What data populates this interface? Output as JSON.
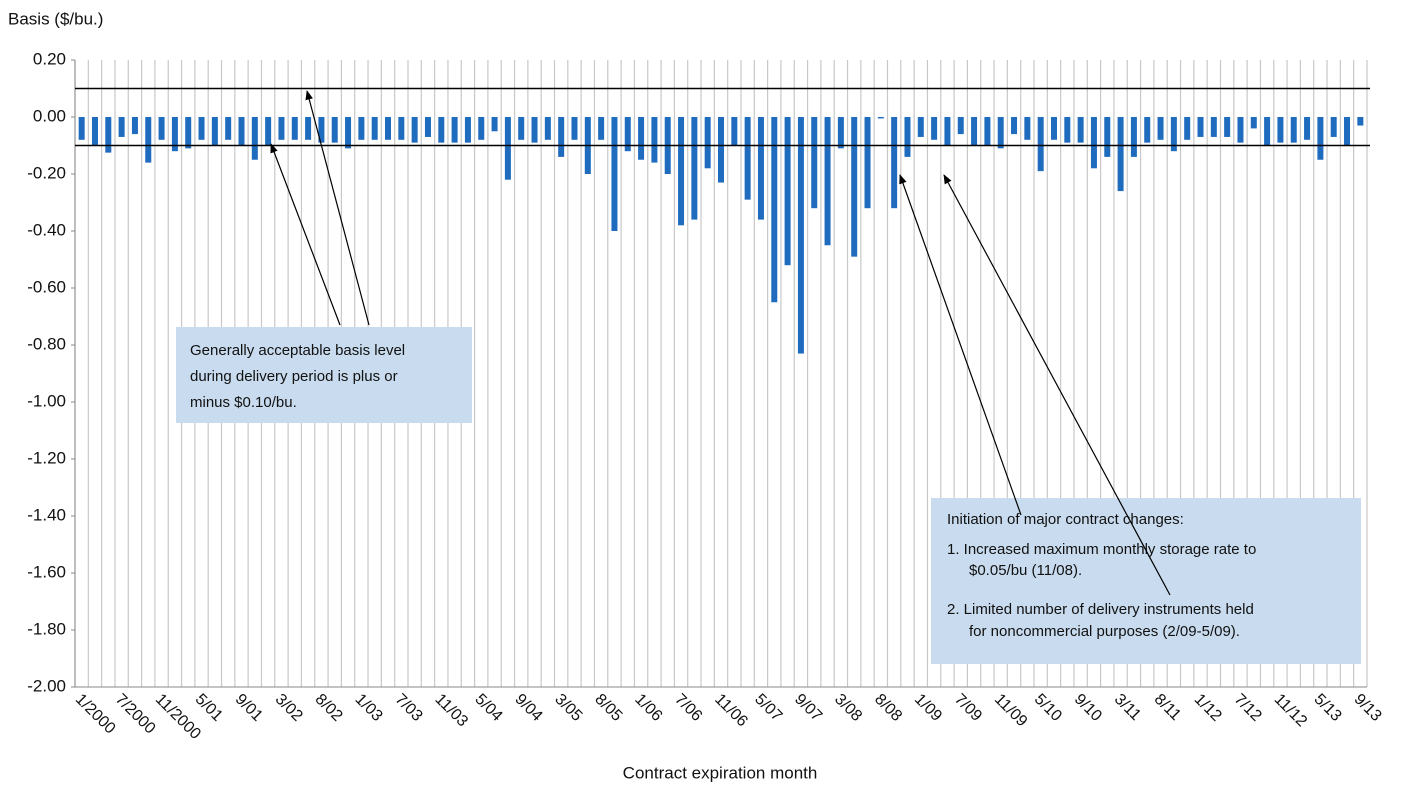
{
  "chart_data": {
    "type": "bar",
    "y_axis_label": "Basis ($/bu.)",
    "x_axis_label": "Contract expiration month",
    "color": "#1f6cbf",
    "ylim": [
      -2.0,
      0.2
    ],
    "yticks": [
      {
        "value": 0.2,
        "label": "0.20"
      },
      {
        "value": 0.0,
        "label": "0.00"
      },
      {
        "value": -0.2,
        "label": "-0.20"
      },
      {
        "value": -0.4,
        "label": "-0.40"
      },
      {
        "value": -0.6,
        "label": "-0.60"
      },
      {
        "value": -0.8,
        "label": "-0.80"
      },
      {
        "value": -1.0,
        "label": "-1.00"
      },
      {
        "value": -1.2,
        "label": "-1.20"
      },
      {
        "value": -1.4,
        "label": "-1.40"
      },
      {
        "value": -1.6,
        "label": "-1.60"
      },
      {
        "value": -1.8,
        "label": "-1.80"
      },
      {
        "value": -2.0,
        "label": "-2.00"
      }
    ],
    "reference_lines": [
      0.1,
      -0.1
    ],
    "categories": [
      "1/2000",
      null,
      null,
      "7/2000",
      null,
      null,
      "11/2000",
      null,
      null,
      "5/01",
      null,
      null,
      "9/01",
      null,
      null,
      "3/02",
      null,
      null,
      "8/02",
      null,
      null,
      "1/03",
      null,
      null,
      "7/03",
      null,
      null,
      "11/03",
      null,
      null,
      "5/04",
      null,
      null,
      "9/04",
      null,
      null,
      "3/05",
      null,
      null,
      "8/05",
      null,
      null,
      "1/06",
      null,
      null,
      "7/06",
      null,
      null,
      "11/06",
      null,
      null,
      "5/07",
      null,
      null,
      "9/07",
      null,
      null,
      "3/08",
      null,
      null,
      "8/08",
      null,
      null,
      "1/09",
      null,
      null,
      "7/09",
      null,
      null,
      "11/09",
      null,
      null,
      "5/10",
      null,
      null,
      "9/10",
      null,
      null,
      "3/11",
      null,
      null,
      "8/11",
      null,
      null,
      "1/12",
      null,
      null,
      "7/12",
      null,
      null,
      "11/12",
      null,
      null,
      "5/13",
      null,
      null,
      "9/13"
    ],
    "values": [
      -0.08,
      -0.1,
      -0.125,
      -0.07,
      -0.06,
      -0.16,
      -0.08,
      -0.12,
      -0.11,
      -0.08,
      -0.1,
      -0.08,
      -0.1,
      -0.15,
      -0.1,
      -0.08,
      -0.08,
      -0.08,
      -0.09,
      -0.09,
      -0.11,
      -0.08,
      -0.08,
      -0.08,
      -0.08,
      -0.09,
      -0.07,
      -0.09,
      -0.09,
      -0.09,
      -0.08,
      -0.05,
      -0.22,
      -0.08,
      -0.09,
      -0.08,
      -0.14,
      -0.08,
      -0.2,
      -0.08,
      -0.4,
      -0.12,
      -0.15,
      -0.16,
      -0.2,
      -0.38,
      -0.36,
      -0.18,
      -0.23,
      -0.1,
      -0.29,
      -0.36,
      -0.65,
      -0.52,
      -0.83,
      -0.32,
      -0.45,
      -0.11,
      -0.49,
      -0.32,
      -0.005,
      -0.32,
      -0.14,
      -0.07,
      -0.08,
      -0.1,
      -0.06,
      -0.1,
      -0.1,
      -0.11,
      -0.06,
      -0.08,
      -0.19,
      -0.08,
      -0.09,
      -0.09,
      -0.18,
      -0.14,
      -0.26,
      -0.14,
      -0.09,
      -0.08,
      -0.12,
      -0.08,
      -0.07,
      -0.07,
      -0.07,
      -0.09,
      -0.04,
      -0.1,
      -0.09,
      -0.09,
      -0.08,
      -0.15,
      -0.07,
      -0.1,
      -0.03
    ],
    "annotations": [
      {
        "lines": [
          "Generally acceptable basis level",
          "during delivery period is plus or",
          "minus $0.10/bu."
        ]
      },
      {
        "lines": [
          "Initiation of major contract changes:",
          "1. Increased maximum monthly storage rate to",
          "$0.05/bu (11/08).",
          "2. Limited number of delivery instruments held",
          "for noncommercial purposes (2/09-5/09)."
        ]
      }
    ]
  }
}
